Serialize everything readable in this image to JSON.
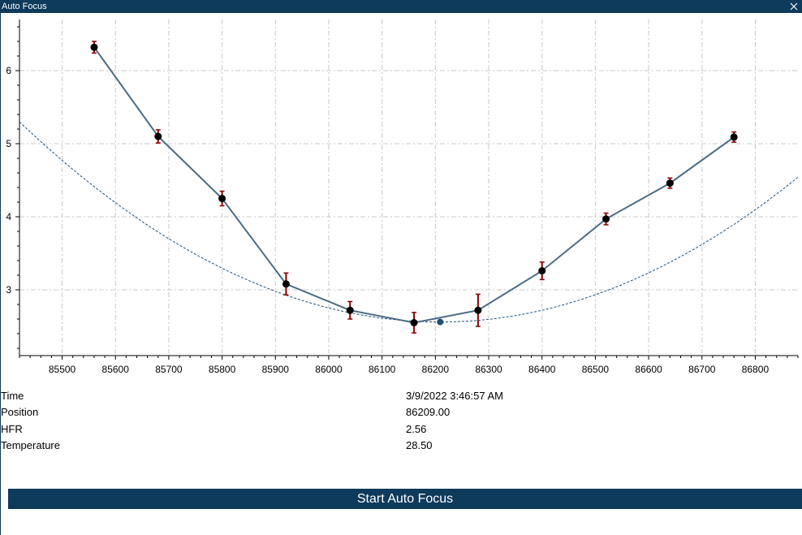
{
  "window": {
    "title": "Auto Focus"
  },
  "icons": {
    "close": "close-icon"
  },
  "chart_data": {
    "type": "line",
    "xlim": [
      85420,
      86880
    ],
    "ylim": [
      2.1,
      6.7
    ],
    "x_ticks": [
      85500,
      85600,
      85700,
      85800,
      85900,
      86000,
      86100,
      86200,
      86300,
      86400,
      86500,
      86600,
      86700,
      86800
    ],
    "y_ticks": [
      3,
      4,
      5,
      6
    ],
    "grid": true,
    "series": [
      {
        "type": "line-with-error-bars",
        "x": [
          85560,
          85680,
          85800,
          85920,
          86040,
          86160,
          86280,
          86400,
          86520,
          86640,
          86760
        ],
        "values": [
          6.32,
          5.1,
          4.25,
          3.08,
          2.72,
          2.55,
          2.72,
          3.26,
          3.97,
          4.46,
          5.09
        ],
        "errors": [
          0.08,
          0.09,
          0.1,
          0.15,
          0.12,
          0.14,
          0.22,
          0.12,
          0.08,
          0.07,
          0.07
        ]
      },
      {
        "type": "fitted-curve",
        "vertex_x": 86209,
        "vertex_y": 2.56,
        "coefficient": 4.4e-06,
        "style": "dashed"
      }
    ],
    "focus_point": {
      "x": 86209,
      "y": 2.56
    },
    "colors": {
      "line": "#4b6b85",
      "fit": "#1f4e79",
      "error": "#8b0000",
      "marker": "#000000",
      "grid": "#c8c8c8"
    }
  },
  "info": {
    "rows": [
      {
        "label": "Time",
        "value": "3/9/2022 3:46:57 AM"
      },
      {
        "label": "Position",
        "value": "86209.00"
      },
      {
        "label": "HFR",
        "value": "2.56"
      },
      {
        "label": "Temperature",
        "value": "28.50"
      }
    ]
  },
  "button": {
    "label": "Start Auto Focus"
  }
}
